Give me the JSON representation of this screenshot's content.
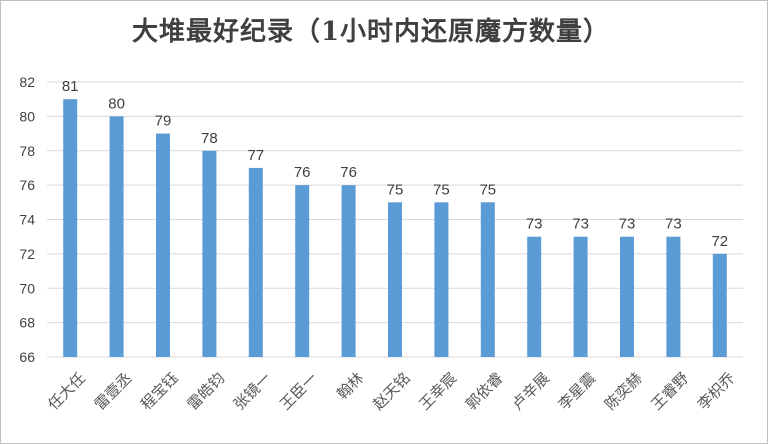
{
  "chart_data": {
    "type": "bar",
    "title": "大堆最好纪录（1小时内还原魔方数量）",
    "categories": [
      "任大任",
      "雷壹丞",
      "程宝钰",
      "雷皓钧",
      "张镜一",
      "王臣一",
      "翰林",
      "赵天铭",
      "王幸宸",
      "郭依睿",
      "卢辛展",
      "李星震",
      "陈奕赫",
      "王睿野",
      "李枳乔"
    ],
    "values": [
      81,
      80,
      79,
      78,
      77,
      76,
      76,
      75,
      75,
      75,
      73,
      73,
      73,
      73,
      72
    ],
    "ylim": [
      66,
      82
    ],
    "yticks": [
      66,
      68,
      70,
      72,
      74,
      76,
      78,
      80,
      82
    ],
    "xlabel": "",
    "ylabel": "",
    "grid": true,
    "bar_color": "#5b9bd5",
    "grid_color": "#d9d9d9"
  }
}
